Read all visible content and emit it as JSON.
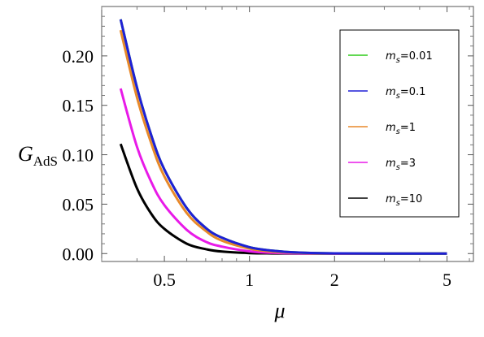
{
  "chart_data": {
    "type": "line",
    "title": "",
    "xlabel": "μ",
    "ylabel": {
      "base": "G",
      "sub": "AdS"
    },
    "x_scale": "log",
    "xlim": [
      0.3,
      6.2
    ],
    "ylim": [
      -0.008,
      0.25
    ],
    "x_ticks": [
      {
        "value": 0.5,
        "label": "0.5"
      },
      {
        "value": 1,
        "label": "1"
      },
      {
        "value": 2,
        "label": "2"
      },
      {
        "value": 5,
        "label": "5"
      }
    ],
    "y_ticks": [
      {
        "value": 0.0,
        "label": "0.00"
      },
      {
        "value": 0.05,
        "label": "0.05"
      },
      {
        "value": 0.1,
        "label": "0.10"
      },
      {
        "value": 0.15,
        "label": "0.15"
      },
      {
        "value": 0.2,
        "label": "0.20"
      }
    ],
    "grid": false,
    "legend_position": "top-right",
    "series": [
      {
        "name": "m_s=0.01",
        "legend_base": "m",
        "legend_sub": "s",
        "legend_value": "=0.01",
        "color": "#2ecc1a",
        "x": [
          0.35,
          0.4,
          0.45,
          0.5,
          0.6,
          0.7,
          0.8,
          1.0,
          1.2,
          1.5,
          2.0,
          3.0,
          5.0
        ],
        "y": [
          0.237,
          0.168,
          0.119,
          0.085,
          0.046,
          0.026,
          0.016,
          0.0065,
          0.003,
          0.001,
          0.0002,
          0.0,
          0.0
        ]
      },
      {
        "name": "m_s=0.1",
        "legend_base": "m",
        "legend_sub": "s",
        "legend_value": "=0.1",
        "color": "#1f1fd6",
        "x": [
          0.35,
          0.4,
          0.45,
          0.5,
          0.6,
          0.7,
          0.8,
          1.0,
          1.2,
          1.5,
          2.0,
          3.0,
          5.0
        ],
        "y": [
          0.237,
          0.168,
          0.119,
          0.085,
          0.046,
          0.026,
          0.016,
          0.0065,
          0.003,
          0.001,
          0.0002,
          0.0,
          0.0
        ]
      },
      {
        "name": "m_s=1",
        "legend_base": "m",
        "legend_sub": "s",
        "legend_value": "=1",
        "color": "#e8892a",
        "x": [
          0.35,
          0.4,
          0.45,
          0.5,
          0.6,
          0.7,
          0.8,
          1.0,
          1.2,
          1.5,
          2.0,
          3.0,
          5.0
        ],
        "y": [
          0.226,
          0.158,
          0.111,
          0.078,
          0.041,
          0.023,
          0.013,
          0.005,
          0.002,
          0.0007,
          0.0001,
          0.0,
          0.0
        ]
      },
      {
        "name": "m_s=3",
        "legend_base": "m",
        "legend_sub": "s",
        "legend_value": "=3",
        "color": "#e81ae8",
        "x": [
          0.35,
          0.4,
          0.45,
          0.5,
          0.6,
          0.7,
          0.8,
          1.0,
          1.2,
          1.5,
          2.0,
          3.0,
          5.0
        ],
        "y": [
          0.167,
          0.108,
          0.072,
          0.049,
          0.024,
          0.012,
          0.007,
          0.0023,
          0.0008,
          0.0002,
          0.0,
          0.0,
          0.0
        ]
      },
      {
        "name": "m_s=10",
        "legend_base": "m",
        "legend_sub": "s",
        "legend_value": "=10",
        "color": "#000000",
        "x": [
          0.35,
          0.4,
          0.45,
          0.5,
          0.6,
          0.7,
          0.8,
          1.0,
          1.2,
          1.5,
          2.0,
          3.0,
          5.0
        ],
        "y": [
          0.111,
          0.066,
          0.04,
          0.025,
          0.01,
          0.0045,
          0.002,
          0.0005,
          0.0001,
          0.0,
          0.0,
          0.0,
          0.0
        ]
      }
    ]
  }
}
